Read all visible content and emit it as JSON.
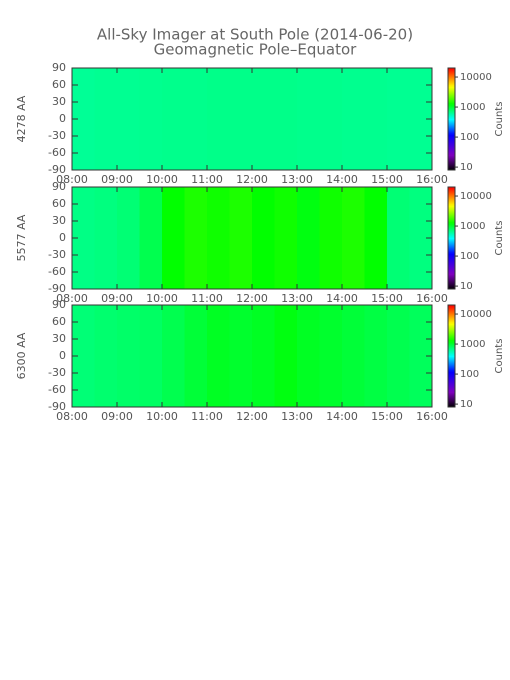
{
  "chart_data": [
    {
      "type": "heatmap",
      "title": "All-Sky Imager at South Pole (2014-06-20)",
      "subtitle": "Geomagnetic Pole–Equator",
      "ylabel": "4278 AA",
      "xbins": [
        8,
        8.5,
        9,
        9.5,
        10,
        10.5,
        11,
        11.5,
        12,
        12.5,
        13,
        13.5,
        14,
        14.5,
        15,
        15.5,
        16
      ],
      "values": [
        650,
        660,
        660,
        670,
        680,
        680,
        690,
        690,
        690,
        690,
        680,
        680,
        670,
        670,
        660,
        660
      ],
      "xlim": [
        8,
        16
      ],
      "xticks": [
        {
          "value": 8,
          "label": "08:00"
        },
        {
          "value": 9,
          "label": "09:00"
        },
        {
          "value": 10,
          "label": "10:00"
        },
        {
          "value": 11,
          "label": "11:00"
        },
        {
          "value": 12,
          "label": "12:00"
        },
        {
          "value": 13,
          "label": "13:00"
        },
        {
          "value": 14,
          "label": "14:00"
        },
        {
          "value": 15,
          "label": "15:00"
        },
        {
          "value": 16,
          "label": "16:00"
        }
      ],
      "ylim": [
        -90,
        90
      ],
      "yticks": [
        -90,
        -60,
        -30,
        0,
        30,
        60,
        90
      ],
      "colorbar": {
        "label": "Counts",
        "log": true,
        "lim": [
          8,
          20000
        ],
        "ticks": [
          10,
          100,
          1000,
          10000
        ]
      }
    },
    {
      "type": "heatmap",
      "ylabel": "5577 AA",
      "xbins": [
        8,
        8.5,
        9,
        9.5,
        10,
        10.5,
        11,
        11.5,
        12,
        12.5,
        13,
        13.5,
        14,
        14.5,
        15,
        15.5,
        16
      ],
      "values": [
        700,
        720,
        760,
        900,
        1300,
        1500,
        1400,
        1500,
        1300,
        1400,
        1200,
        1400,
        1500,
        1300,
        760,
        720
      ],
      "xlim": [
        8,
        16
      ],
      "xticks": [
        {
          "value": 8,
          "label": "08:00"
        },
        {
          "value": 9,
          "label": "09:00"
        },
        {
          "value": 10,
          "label": "10:00"
        },
        {
          "value": 11,
          "label": "11:00"
        },
        {
          "value": 12,
          "label": "12:00"
        },
        {
          "value": 13,
          "label": "13:00"
        },
        {
          "value": 14,
          "label": "14:00"
        },
        {
          "value": 15,
          "label": "15:00"
        },
        {
          "value": 16,
          "label": "16:00"
        }
      ],
      "ylim": [
        -90,
        90
      ],
      "yticks": [
        -90,
        -60,
        -30,
        0,
        30,
        60,
        90
      ],
      "colorbar": {
        "label": "Counts",
        "log": true,
        "lim": [
          8,
          20000
        ],
        "ticks": [
          10,
          100,
          1000,
          10000
        ]
      }
    },
    {
      "type": "heatmap",
      "ylabel": "6300 AA",
      "xbins": [
        8,
        8.5,
        9,
        9.5,
        10,
        10.5,
        11,
        11.5,
        12,
        12.5,
        13,
        13.5,
        14,
        14.5,
        15,
        15.5,
        16
      ],
      "values": [
        750,
        780,
        800,
        820,
        900,
        1000,
        1100,
        1050,
        1100,
        1200,
        1100,
        1050,
        1000,
        950,
        900,
        850
      ],
      "xlim": [
        8,
        16
      ],
      "xticks": [
        {
          "value": 8,
          "label": "08:00"
        },
        {
          "value": 9,
          "label": "09:00"
        },
        {
          "value": 10,
          "label": "10:00"
        },
        {
          "value": 11,
          "label": "11:00"
        },
        {
          "value": 12,
          "label": "12:00"
        },
        {
          "value": 13,
          "label": "13:00"
        },
        {
          "value": 14,
          "label": "14:00"
        },
        {
          "value": 15,
          "label": "15:00"
        },
        {
          "value": 16,
          "label": "16:00"
        }
      ],
      "ylim": [
        -90,
        90
      ],
      "yticks": [
        -90,
        -60,
        -30,
        0,
        30,
        60,
        90
      ],
      "colorbar": {
        "label": "Counts",
        "log": true,
        "lim": [
          8,
          20000
        ],
        "ticks": [
          10,
          100,
          1000,
          10000
        ]
      }
    }
  ]
}
